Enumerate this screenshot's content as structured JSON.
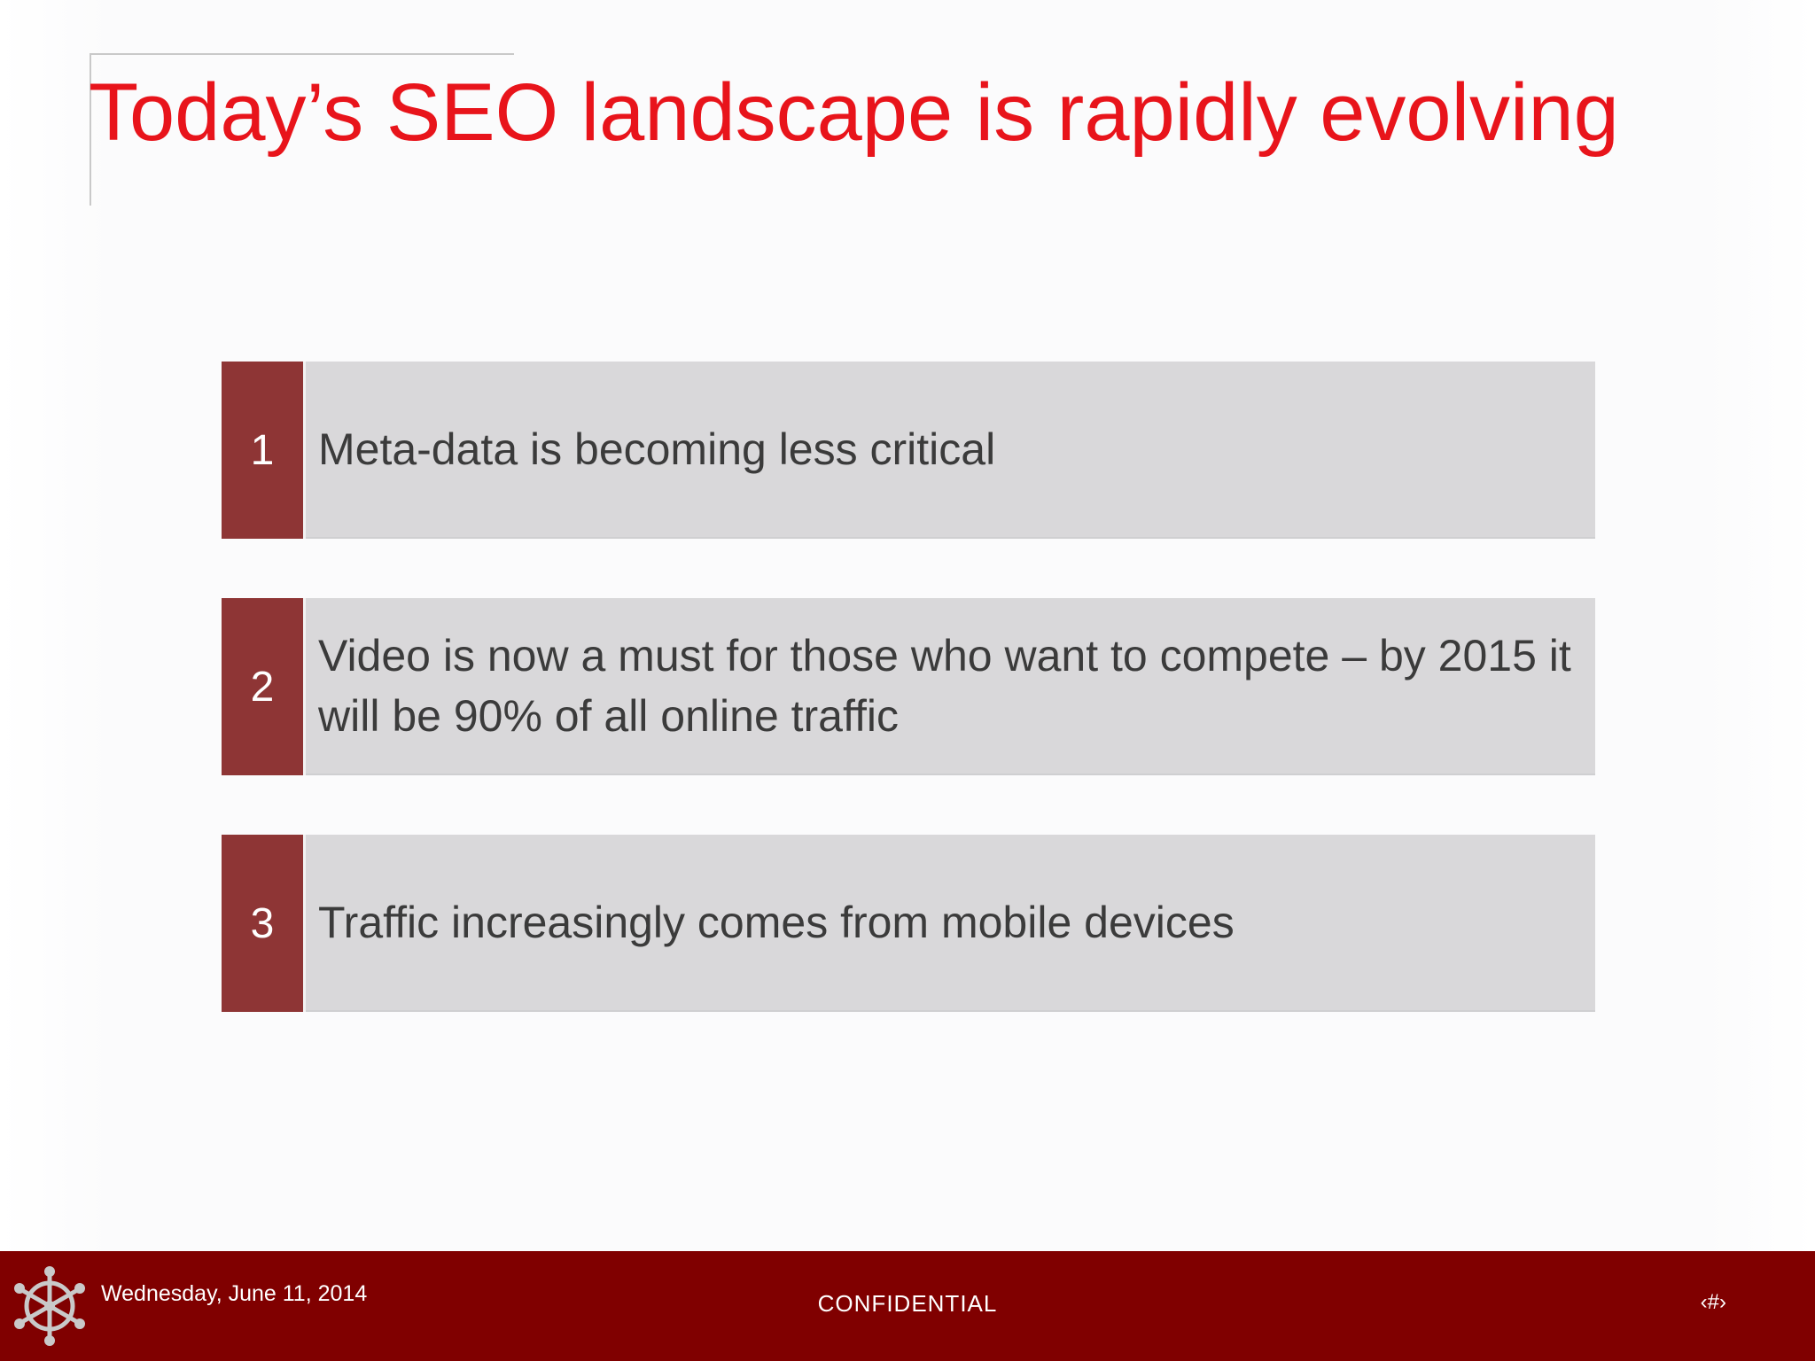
{
  "slide": {
    "title": "Today’s SEO landscape is rapidly evolving",
    "items": [
      {
        "number": "1",
        "text": "Meta-data is becoming less critical"
      },
      {
        "number": "2",
        "text": "Video is now a must for those who want to compete – by 2015 it will be 90% of all online traffic"
      },
      {
        "number": "3",
        "text": "Traffic increasingly comes from mobile devices"
      }
    ]
  },
  "footer": {
    "date": "Wednesday, June 11, 2014",
    "confidential": "CONFIDENTIAL",
    "page": "‹#›",
    "logo_icon": "snowflake-wheel-icon"
  },
  "colors": {
    "title": "#e8141b",
    "number_box": "#8e3535",
    "item_box": "#d9d8da",
    "footer_bg": "#800000"
  }
}
